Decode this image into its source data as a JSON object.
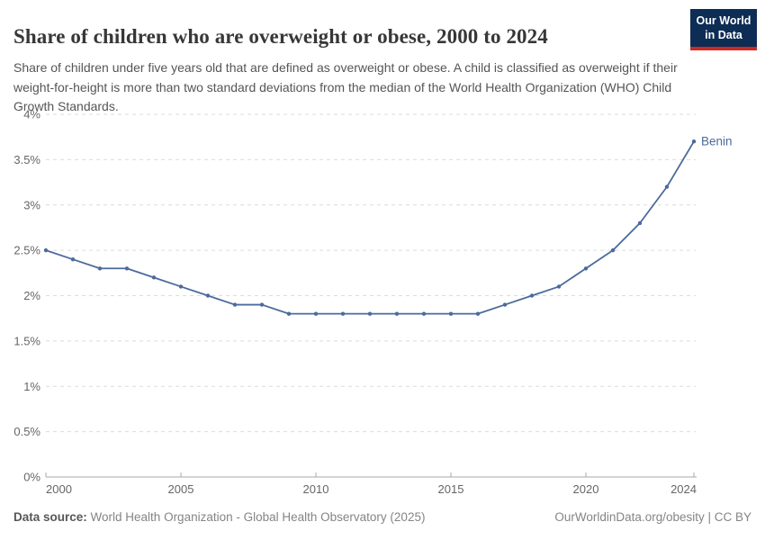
{
  "header": {
    "title": "Share of children who are overweight or obese, 2000 to 2024",
    "subtitle": "Share of children under five years old that are defined as overweight or obese. A child is classified as overweight if their weight-for-height is more than two standard deviations from the median of the World Health Organization (WHO) Child Growth Standards.",
    "logo_line1": "Our World",
    "logo_line2": "in Data"
  },
  "chart_data": {
    "type": "line",
    "title": "Share of children who are overweight or obese, 2000 to 2024",
    "x": [
      2000,
      2001,
      2002,
      2003,
      2004,
      2005,
      2006,
      2007,
      2008,
      2009,
      2010,
      2011,
      2012,
      2013,
      2014,
      2015,
      2016,
      2017,
      2018,
      2019,
      2020,
      2021,
      2022,
      2023,
      2024
    ],
    "series": [
      {
        "name": "Benin",
        "color": "#4C6A9C",
        "values": [
          2.5,
          2.4,
          2.3,
          2.3,
          2.2,
          2.1,
          2.0,
          1.9,
          1.9,
          1.8,
          1.8,
          1.8,
          1.8,
          1.8,
          1.8,
          1.8,
          1.8,
          1.9,
          2.0,
          2.1,
          2.3,
          2.5,
          2.8,
          3.2,
          3.7
        ]
      }
    ],
    "xlim": [
      2000,
      2024
    ],
    "ylim": [
      0,
      4
    ],
    "x_ticks": [
      2000,
      2005,
      2010,
      2015,
      2020,
      2024
    ],
    "y_ticks": [
      0,
      0.5,
      1,
      1.5,
      2,
      2.5,
      3,
      3.5,
      4
    ],
    "y_unit": "%",
    "grid": "horizontal-dashed",
    "legend": "end-of-line-label",
    "xlabel": "",
    "ylabel": ""
  },
  "footer": {
    "source_label": "Data source:",
    "source_text": " World Health Organization - Global Health Observatory (2025)",
    "right_text": "OurWorldinData.org/obesity | CC BY"
  },
  "colors": {
    "series_blue": "#4C6A9C",
    "gridline": "#dcdcdc",
    "axis_line": "#a8a8a8",
    "tick_label": "#666666",
    "logo_navy": "#0e2d55",
    "logo_red": "#cc2a22"
  }
}
